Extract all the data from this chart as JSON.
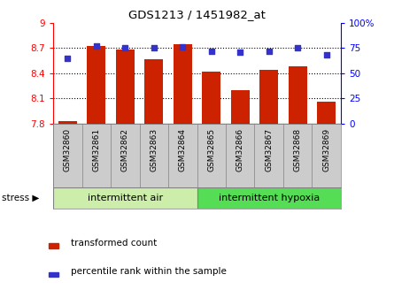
{
  "title": "GDS1213 / 1451982_at",
  "samples": [
    "GSM32860",
    "GSM32861",
    "GSM32862",
    "GSM32863",
    "GSM32864",
    "GSM32865",
    "GSM32866",
    "GSM32867",
    "GSM32868",
    "GSM32869"
  ],
  "bar_values": [
    7.83,
    8.72,
    8.68,
    8.57,
    8.75,
    8.42,
    8.2,
    8.44,
    8.48,
    8.06
  ],
  "dot_values": [
    65,
    77,
    75,
    75,
    76,
    72,
    71,
    72,
    75,
    68
  ],
  "bar_color": "#cc2200",
  "dot_color": "#3333cc",
  "ylim_left": [
    7.8,
    9.0
  ],
  "ylim_right": [
    0,
    100
  ],
  "yticks_left": [
    7.8,
    8.1,
    8.4,
    8.7,
    9.0
  ],
  "yticks_right": [
    0,
    25,
    50,
    75,
    100
  ],
  "ytick_labels_left": [
    "7.8",
    "8.1",
    "8.4",
    "8.7",
    "9"
  ],
  "ytick_labels_right": [
    "0",
    "25",
    "50",
    "75",
    "100%"
  ],
  "group1_label": "intermittent air",
  "group2_label": "intermittent hypoxia",
  "group1_color": "#cceeaa",
  "group2_color": "#55dd55",
  "group_label": "stress",
  "bar_bottom": 7.8,
  "legend_bar_label": "transformed count",
  "legend_dot_label": "percentile rank within the sample",
  "sample_bg_color": "#cccccc"
}
